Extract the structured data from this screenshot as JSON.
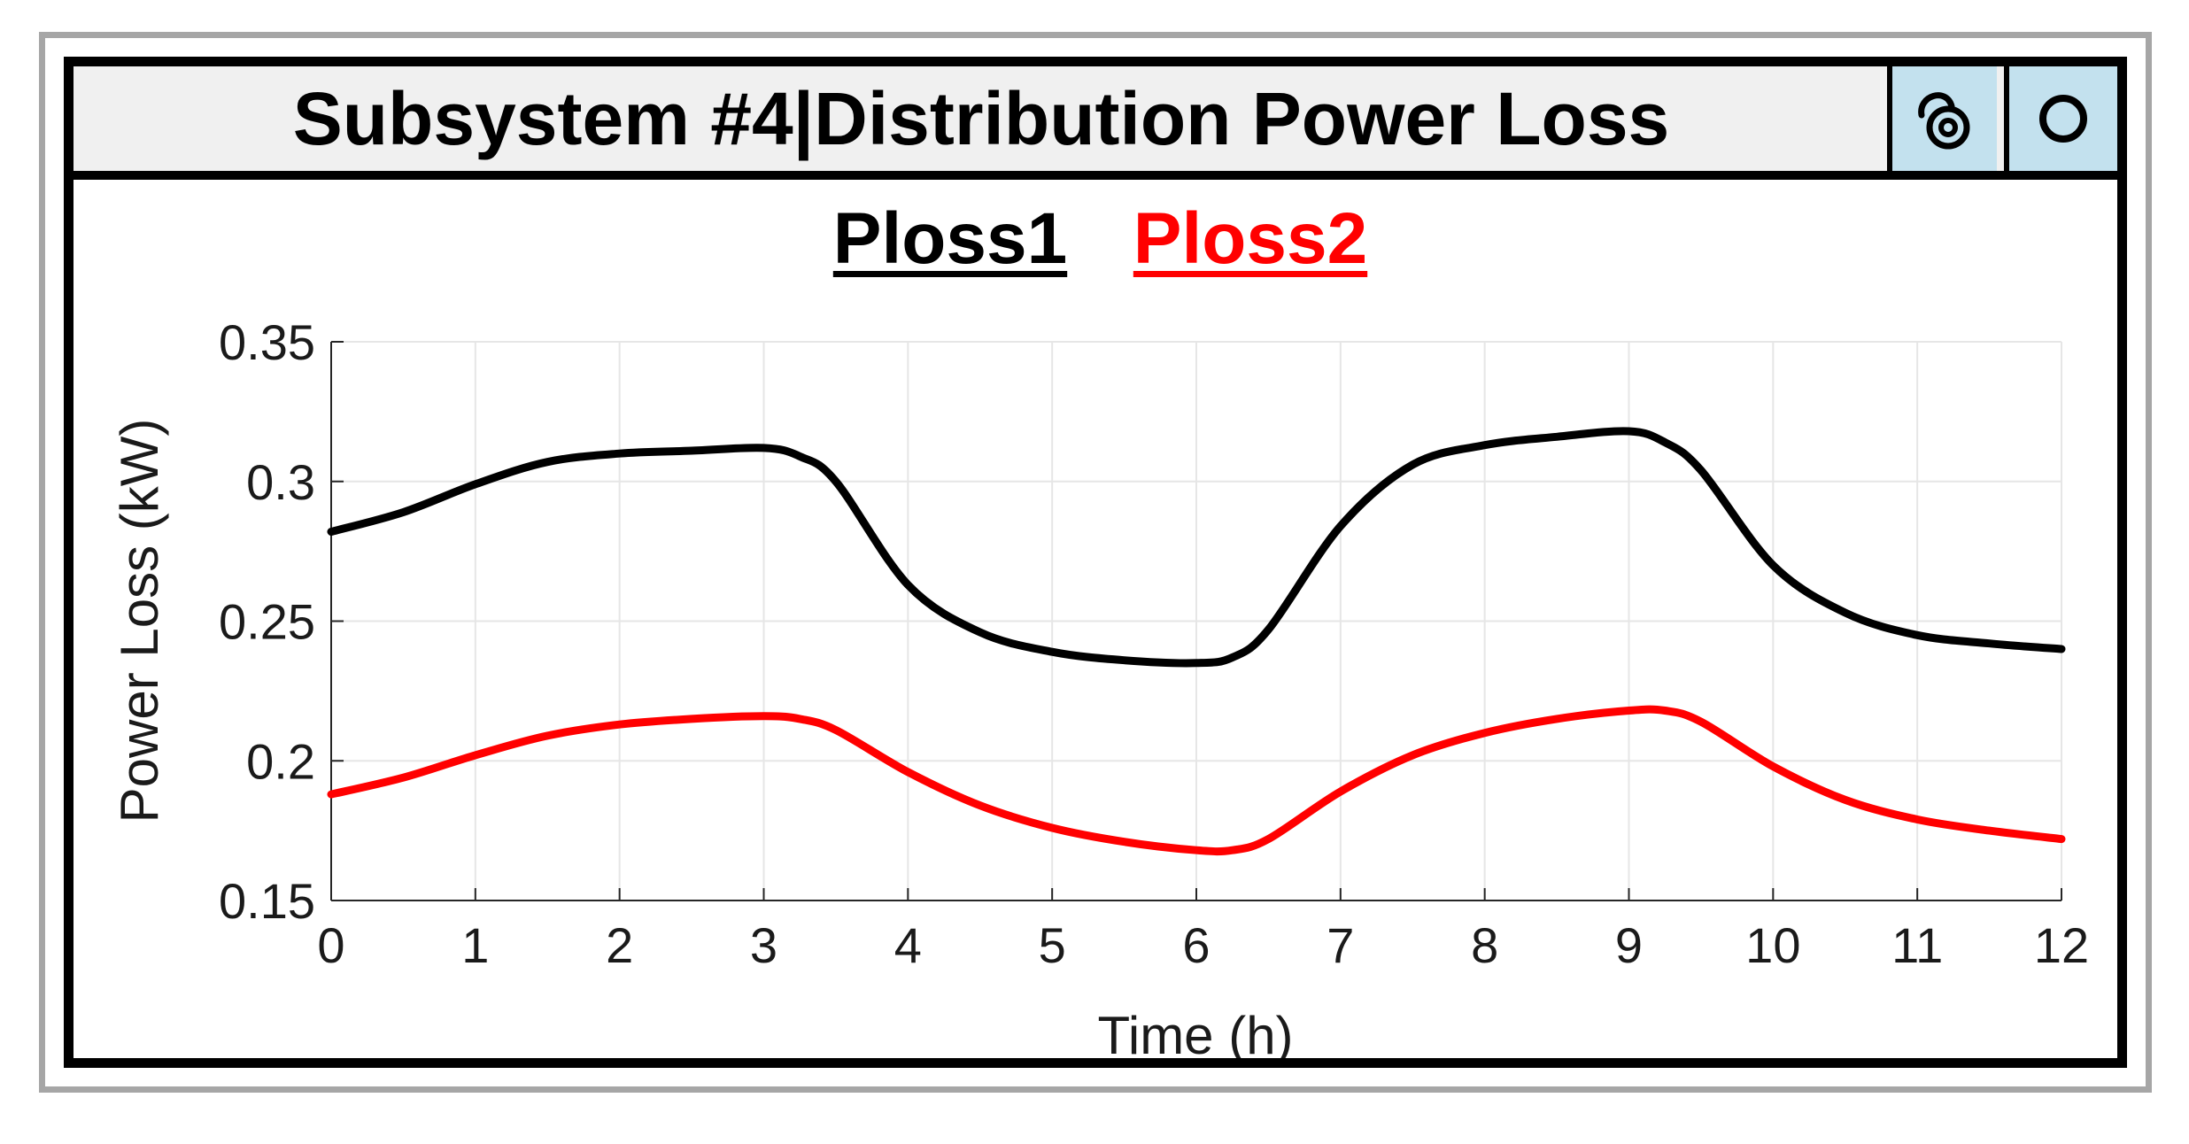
{
  "window": {
    "title": "Subsystem #4|Distribution Power Loss",
    "undock_icon": "undock-icon",
    "close_icon": "circle-icon"
  },
  "chart_data": {
    "type": "line",
    "title": "",
    "xlabel": "Time (h)",
    "ylabel": "Power Loss (kW)",
    "xlim": [
      0,
      12
    ],
    "ylim": [
      0.15,
      0.35
    ],
    "xticks": [
      "0",
      "1",
      "2",
      "3",
      "4",
      "5",
      "6",
      "7",
      "8",
      "9",
      "10",
      "11",
      "12"
    ],
    "yticks": [
      "0.15",
      "0.2",
      "0.25",
      "0.3",
      "0.35"
    ],
    "grid": true,
    "legend_position": "top-center",
    "x": [
      0,
      0.5,
      1,
      1.5,
      2,
      2.5,
      3,
      3.25,
      3.5,
      4,
      4.5,
      5,
      5.5,
      6,
      6.25,
      6.5,
      7,
      7.5,
      8,
      8.5,
      9,
      9.25,
      9.5,
      10,
      10.5,
      11,
      11.5,
      12
    ],
    "series": [
      {
        "name": "Ploss1",
        "color": "#000000",
        "values": [
          0.282,
          0.289,
          0.299,
          0.307,
          0.31,
          0.311,
          0.312,
          0.309,
          0.3,
          0.263,
          0.246,
          0.239,
          0.236,
          0.235,
          0.237,
          0.247,
          0.284,
          0.306,
          0.313,
          0.316,
          0.318,
          0.314,
          0.304,
          0.27,
          0.253,
          0.245,
          0.242,
          0.24
        ]
      },
      {
        "name": "Ploss2",
        "color": "#ff0000",
        "values": [
          0.188,
          0.194,
          0.202,
          0.209,
          0.213,
          0.215,
          0.216,
          0.215,
          0.211,
          0.196,
          0.184,
          0.176,
          0.171,
          0.168,
          0.168,
          0.172,
          0.189,
          0.202,
          0.21,
          0.215,
          0.218,
          0.218,
          0.214,
          0.198,
          0.186,
          0.179,
          0.175,
          0.172
        ]
      }
    ]
  }
}
